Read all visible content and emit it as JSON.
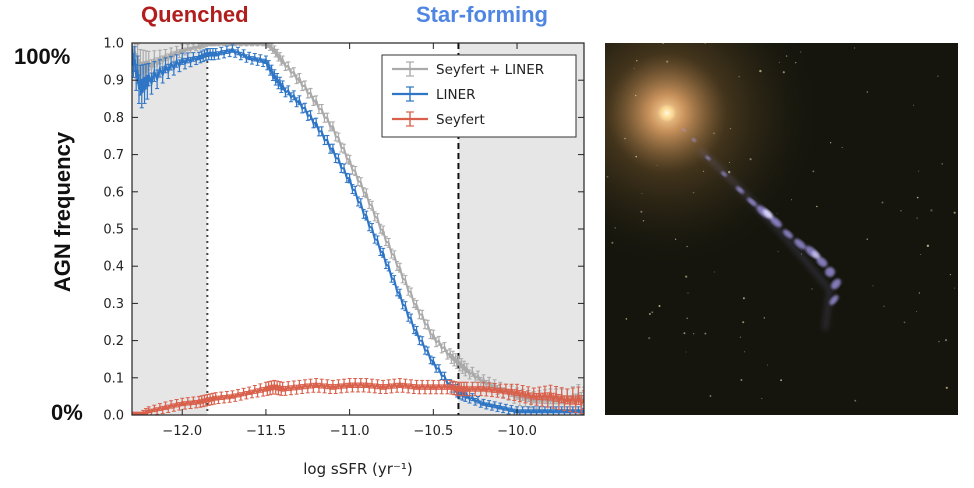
{
  "headers": {
    "quenched": "Quenched",
    "star_forming": "Star-forming"
  },
  "side_labels": {
    "top": "100%",
    "bottom": "0%"
  },
  "chart_data": {
    "type": "line",
    "xlabel": "log sSFR (yr⁻¹)",
    "ylabel": "AGN frequency",
    "xlim": [
      -12.3,
      -9.6
    ],
    "ylim": [
      0.0,
      1.0
    ],
    "x_ticks": [
      -12.0,
      -11.5,
      -11.0,
      -10.5,
      -10.0
    ],
    "x_tick_labels": [
      "−12.0",
      "−11.5",
      "−11.0",
      "−10.5",
      "−10.0"
    ],
    "y_ticks": [
      0.0,
      0.1,
      0.2,
      0.3,
      0.4,
      0.5,
      0.6,
      0.7,
      0.8,
      0.9,
      1.0
    ],
    "y_tick_labels": [
      "0.0",
      "0.1",
      "0.2",
      "0.3",
      "0.4",
      "0.5",
      "0.6",
      "0.7",
      "0.8",
      "0.9",
      "1.0"
    ],
    "shaded_regions": [
      [
        -12.3,
        -11.85
      ],
      [
        -10.35,
        -9.6
      ]
    ],
    "vlines": [
      {
        "x": -11.85,
        "style": "dotted"
      },
      {
        "x": -10.35,
        "style": "dashed"
      }
    ],
    "legend_position": "top-right",
    "x": [
      -12.3,
      -12.25,
      -12.2,
      -12.1,
      -12.0,
      -11.9,
      -11.85,
      -11.8,
      -11.7,
      -11.6,
      -11.5,
      -11.45,
      -11.4,
      -11.3,
      -11.2,
      -11.1,
      -11.0,
      -10.9,
      -10.8,
      -10.7,
      -10.6,
      -10.5,
      -10.4,
      -10.35,
      -10.3,
      -10.2,
      -10.1,
      -10.0,
      -9.9,
      -9.8,
      -9.7,
      -9.6
    ],
    "series": [
      {
        "name": "Seyfert + LINER",
        "color": "#aaaaaa",
        "values": [
          0.98,
          0.93,
          0.94,
          0.96,
          0.98,
          0.99,
          1.0,
          1.0,
          1.0,
          1.0,
          1.0,
          0.98,
          0.95,
          0.9,
          0.84,
          0.77,
          0.68,
          0.59,
          0.49,
          0.39,
          0.29,
          0.21,
          0.16,
          0.14,
          0.12,
          0.09,
          0.07,
          0.05,
          0.04,
          0.04,
          0.04,
          0.05
        ],
        "errors": [
          0.03,
          0.035,
          0.025,
          0.015,
          0.01,
          0.005,
          0.005,
          0.005,
          0.005,
          0.005,
          0.005,
          0.008,
          0.01,
          0.012,
          0.012,
          0.012,
          0.012,
          0.012,
          0.012,
          0.012,
          0.012,
          0.012,
          0.012,
          0.012,
          0.012,
          0.012,
          0.012,
          0.015,
          0.015,
          0.02,
          0.02,
          0.025
        ]
      },
      {
        "name": "LINER",
        "color": "#2e75c5",
        "values": [
          0.97,
          0.88,
          0.9,
          0.93,
          0.95,
          0.96,
          0.97,
          0.97,
          0.98,
          0.96,
          0.95,
          0.91,
          0.88,
          0.84,
          0.78,
          0.71,
          0.63,
          0.53,
          0.43,
          0.32,
          0.22,
          0.14,
          0.08,
          0.06,
          0.05,
          0.03,
          0.02,
          0.01,
          0.01,
          0.01,
          0.01,
          0.01
        ],
        "errors": [
          0.03,
          0.04,
          0.03,
          0.02,
          0.015,
          0.01,
          0.01,
          0.01,
          0.01,
          0.01,
          0.01,
          0.012,
          0.012,
          0.012,
          0.012,
          0.012,
          0.012,
          0.012,
          0.012,
          0.012,
          0.012,
          0.01,
          0.01,
          0.01,
          0.01,
          0.008,
          0.008,
          0.008,
          0.008,
          0.008,
          0.008,
          0.008
        ]
      },
      {
        "name": "Seyfert",
        "color": "#d9604b",
        "values": [
          0.0,
          0.0,
          0.01,
          0.02,
          0.03,
          0.035,
          0.04,
          0.045,
          0.05,
          0.06,
          0.07,
          0.075,
          0.07,
          0.075,
          0.08,
          0.075,
          0.08,
          0.08,
          0.075,
          0.08,
          0.075,
          0.075,
          0.075,
          0.07,
          0.07,
          0.07,
          0.065,
          0.06,
          0.05,
          0.05,
          0.04,
          0.04
        ],
        "errors": [
          0.005,
          0.005,
          0.008,
          0.01,
          0.01,
          0.01,
          0.01,
          0.01,
          0.01,
          0.01,
          0.012,
          0.012,
          0.012,
          0.012,
          0.012,
          0.012,
          0.012,
          0.012,
          0.012,
          0.012,
          0.012,
          0.012,
          0.012,
          0.012,
          0.012,
          0.012,
          0.012,
          0.015,
          0.015,
          0.02,
          0.02,
          0.025
        ]
      }
    ]
  },
  "photo": {
    "background_color": "#15150d",
    "core_color": "#ffe09a",
    "jet_color": "#a69cf0"
  }
}
